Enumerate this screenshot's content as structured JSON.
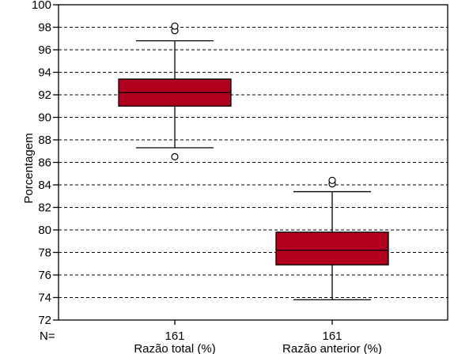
{
  "chart_data": {
    "type": "boxplot",
    "title": "",
    "xlabel": "",
    "ylabel": "Porcentagem",
    "ylim": [
      72,
      100
    ],
    "yticks": [
      72,
      74,
      76,
      78,
      80,
      82,
      84,
      86,
      88,
      90,
      92,
      94,
      96,
      98,
      100
    ],
    "grid": "horizontal dashed",
    "box_color": "#b0001e",
    "n_prefix": "N=",
    "categories": [
      "Razão total (%)",
      "Razão anterior (%)"
    ],
    "series": [
      {
        "category": "Razão total (%)",
        "n": "161",
        "whisker_low": 87.3,
        "q1": 91.0,
        "median": 92.2,
        "q3": 93.4,
        "whisker_high": 96.8,
        "outliers": [
          86.5,
          97.7,
          98.1
        ]
      },
      {
        "category": "Razão anterior (%)",
        "n": "161",
        "whisker_low": 73.8,
        "q1": 76.9,
        "median": 78.2,
        "q3": 79.8,
        "whisker_high": 83.4,
        "outliers": [
          84.1,
          84.4
        ]
      }
    ]
  }
}
